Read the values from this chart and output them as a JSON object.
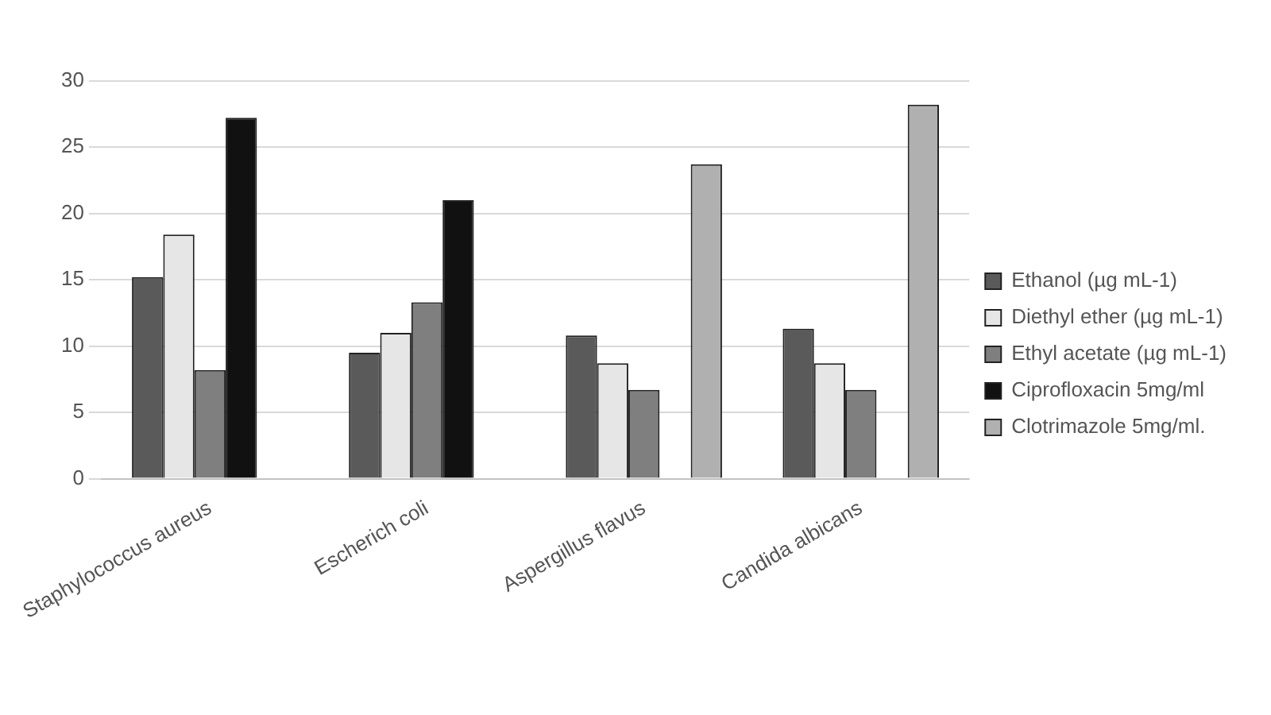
{
  "chart_data": {
    "type": "bar",
    "categories": [
      "Staphylococcus aureus",
      "Escherich coli",
      "Aspergillus flavus",
      "Candida albicans"
    ],
    "series": [
      {
        "name": "Ethanol (µg mL-1)",
        "color": "#5a5a5a",
        "values": [
          15.2,
          9.5,
          10.8,
          11.3
        ]
      },
      {
        "name": "Diethyl ether (µg mL-1)",
        "color": "#e6e6e6",
        "values": [
          18.4,
          11,
          8.7,
          8.7
        ]
      },
      {
        "name": "Ethyl acetate (µg mL-1)",
        "color": "#7f7f7f",
        "values": [
          8.2,
          13.3,
          6.7,
          6.7
        ]
      },
      {
        "name": "Ciprofloxacin 5mg/ml",
        "color": "#111111",
        "values": [
          27.2,
          21,
          null,
          null
        ]
      },
      {
        "name": "Clotrimazole 5mg/ml.",
        "color": "#b0b0b0",
        "values": [
          null,
          null,
          23.7,
          28.2
        ]
      }
    ],
    "ylim": [
      0,
      30
    ],
    "yticks": [
      0,
      5,
      10,
      15,
      20,
      25,
      30
    ],
    "grid": "y",
    "legend": "right"
  }
}
